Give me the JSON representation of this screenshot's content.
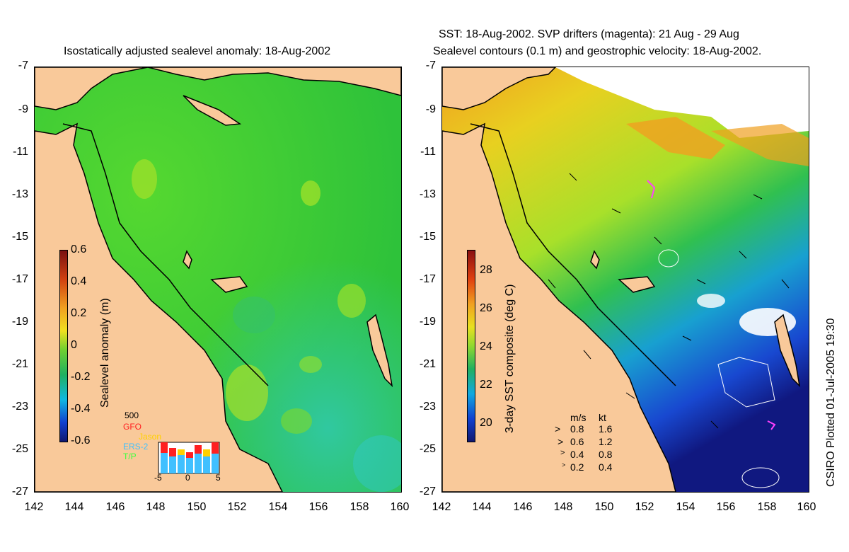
{
  "left_panel": {
    "title": "Isostatically adjusted sealevel anomaly: 18-Aug-2002",
    "colorbar_label": "Sealevel anomaly (m)",
    "colorbar_ticks": [
      "0.6",
      "0.4",
      "0.2",
      "0",
      "-0.2",
      "-0.4",
      "-0.6"
    ],
    "inset": {
      "top_value": "500",
      "missions": [
        "GFO",
        "Jason",
        "ERS-2",
        "T/P"
      ],
      "mission_colors": [
        "#ff2020",
        "#ffd000",
        "#40c0ff",
        "#40ff40"
      ],
      "x_ticks": [
        "-5",
        "0",
        "5"
      ]
    }
  },
  "right_panel": {
    "title_line1": "SST: 18-Aug-2002. SVP drifters (magenta): 21 Aug - 29 Aug",
    "title_line2": "Sealevel contours (0.1 m) and geostrophic velocity: 18-Aug-2002.",
    "colorbar_label": "3-day SST composite (deg C)",
    "colorbar_ticks": [
      "28",
      "26",
      "24",
      "22",
      "20"
    ],
    "velocity_legend": {
      "header_ms": "m/s",
      "header_kt": "kt",
      "rows": [
        {
          "ms": "0.8",
          "kt": "1.6"
        },
        {
          "ms": "0.6",
          "kt": "1.2"
        },
        {
          "ms": "0.4",
          "kt": "0.8"
        },
        {
          "ms": "0.2",
          "kt": "0.4"
        }
      ]
    }
  },
  "axes": {
    "y_ticks": [
      "-7",
      "-9",
      "-11",
      "-13",
      "-15",
      "-17",
      "-19",
      "-21",
      "-23",
      "-25",
      "-27"
    ],
    "x_ticks": [
      "142",
      "144",
      "146",
      "148",
      "150",
      "152",
      "154",
      "156",
      "158",
      "160"
    ]
  },
  "credit": "CSIRO Plotted 01-Jul-2005 19:30",
  "colors": {
    "land": "#f9c99a",
    "ocean_green": "#3fcf2a",
    "sst_warm": "#f2a020",
    "sst_mid": "#d8e82a",
    "sst_cool": "#1a3fd0"
  }
}
